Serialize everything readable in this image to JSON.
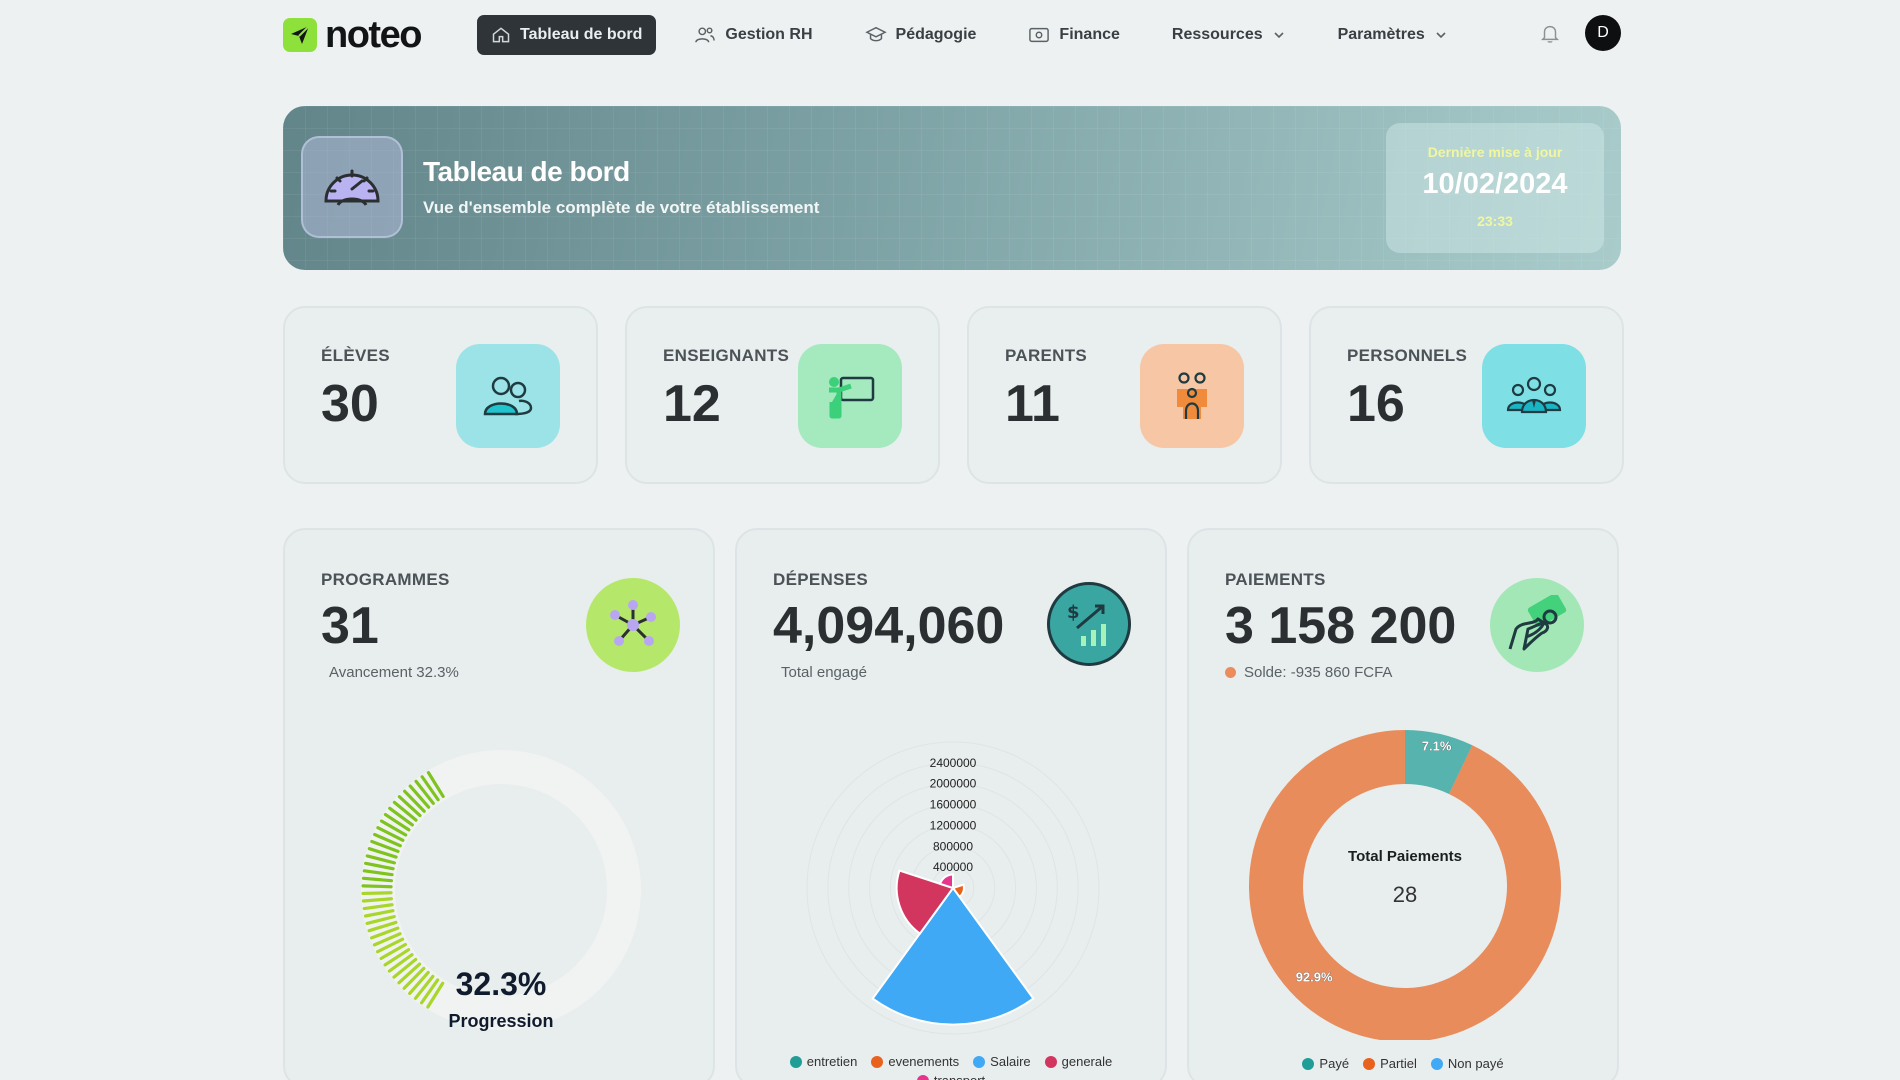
{
  "nav": {
    "logo": "noteo",
    "items": [
      {
        "label": "Tableau de bord",
        "icon": "home-icon"
      },
      {
        "label": "Gestion RH",
        "icon": "users-icon"
      },
      {
        "label": "Pédagogie",
        "icon": "graduation-cap-icon"
      },
      {
        "label": "Finance",
        "icon": "banknote-icon"
      },
      {
        "label": "Ressources",
        "icon": "chevron-down-icon"
      },
      {
        "label": "Paramètres",
        "icon": "chevron-down-icon"
      }
    ],
    "avatar": "D"
  },
  "hero": {
    "title": "Tableau de bord",
    "subtitle": "Vue d'ensemble complète de votre établissement",
    "update_label": "Dernière mise à jour",
    "update_date": "10/02/2024",
    "update_time": "23:33"
  },
  "stats": [
    {
      "label": "ÉLÈVES",
      "value": "30",
      "color": "#9be3e6"
    },
    {
      "label": "ENSEIGNANTS",
      "value": "12",
      "color": "#a5e9bf"
    },
    {
      "label": "PARENTS",
      "value": "11",
      "color": "#f6c6a5"
    },
    {
      "label": "PERSONNELS",
      "value": "16",
      "color": "#7ee0e5"
    }
  ],
  "programmes": {
    "label": "PROGRAMMES",
    "value": "31",
    "sub": "Avancement 32.3%",
    "progress_text": "32.3%",
    "progress_label": "Progression",
    "progress": 0.323
  },
  "depenses": {
    "label": "DÉPENSES",
    "value": "4,094,060",
    "sub": "Total engagé"
  },
  "paiements": {
    "label": "PAIEMENTS",
    "value": "3 158 200",
    "sub": "Solde: -935 860 FCFA",
    "center_title": "Total Paiements",
    "center_value": "28"
  },
  "chart_data": [
    {
      "type": "polar-area",
      "title": "",
      "radial_ticks": [
        "2400000",
        "2000000",
        "1600000",
        "1200000",
        "800000",
        "400000"
      ],
      "rmax": 2800000,
      "categories": [
        "entretien",
        "evenements",
        "Salaire",
        "generale",
        "transport"
      ],
      "values": [
        0,
        210000,
        2620000,
        1080000,
        260000
      ],
      "colors": [
        "#1f9d96",
        "#e8621e",
        "#3fa9f5",
        "#d2365f",
        "#e6358d"
      ]
    },
    {
      "type": "pie",
      "title": "",
      "categories": [
        "Payé",
        "Partiel",
        "Non payé"
      ],
      "values": [
        7.1,
        92.9,
        0
      ],
      "labels": [
        "7.1%",
        "92.9%",
        ""
      ],
      "colors": [
        "#1f9d96",
        "#e8621e",
        "#3fa9f5"
      ]
    }
  ]
}
